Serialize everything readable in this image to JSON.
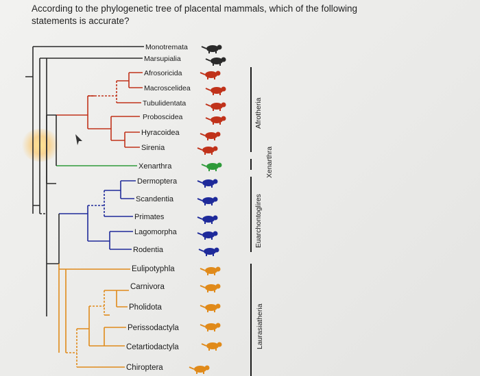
{
  "question": {
    "line1": "According to the phylogenetic tree of placental mammals, which of the following",
    "line2": "statements is accurate?"
  },
  "colors": {
    "afrotheria": "#c0321a",
    "xenarthra": "#2e9a3a",
    "euarchontoglires": "#1e2a9a",
    "laurasiatheria": "#e08a1a",
    "outgroup": "#2a2a2a"
  },
  "taxa": [
    {
      "label": "Monotremata",
      "clade": "outgroup",
      "icon": "platypus-icon"
    },
    {
      "label": "Marsupialia",
      "clade": "outgroup",
      "icon": "kangaroo-icon"
    },
    {
      "label": "Afrosoricida",
      "clade": "afrotheria",
      "icon": "tenrec-icon"
    },
    {
      "label": "Macroscelidea",
      "clade": "afrotheria",
      "icon": "elephant-shrew-icon"
    },
    {
      "label": "Tubulidentata",
      "clade": "afrotheria",
      "icon": "aardvark-icon"
    },
    {
      "label": "Proboscidea",
      "clade": "afrotheria",
      "icon": "elephant-icon"
    },
    {
      "label": "Hyracoidea",
      "clade": "afrotheria",
      "icon": "hyrax-icon"
    },
    {
      "label": "Sirenia",
      "clade": "afrotheria",
      "icon": "manatee-icon"
    },
    {
      "label": "Xenarthra",
      "clade": "xenarthra",
      "icon": "armadillo-icon"
    },
    {
      "label": "Dermoptera",
      "clade": "euarchontoglires",
      "icon": "colugo-icon"
    },
    {
      "label": "Scandentia",
      "clade": "euarchontoglires",
      "icon": "tree-shrew-icon"
    },
    {
      "label": "Primates",
      "clade": "euarchontoglires",
      "icon": "primate-icon"
    },
    {
      "label": "Lagomorpha",
      "clade": "euarchontoglires",
      "icon": "rabbit-icon"
    },
    {
      "label": "Rodentia",
      "clade": "euarchontoglires",
      "icon": "rodent-icon"
    },
    {
      "label": "Eulipotyphla",
      "clade": "laurasiatheria",
      "icon": "shrew-icon"
    },
    {
      "label": "Carnivora",
      "clade": "laurasiatheria",
      "icon": "big-cat-icon"
    },
    {
      "label": "Pholidota",
      "clade": "laurasiatheria",
      "icon": "pangolin-icon"
    },
    {
      "label": "Perissodactyla",
      "clade": "laurasiatheria",
      "icon": "horse-icon"
    },
    {
      "label": "Cetartiodactyla",
      "clade": "laurasiatheria",
      "icon": "camel-whale-icon"
    },
    {
      "label": "Chiroptera",
      "clade": "laurasiatheria",
      "icon": "bat-icon"
    }
  ],
  "groups": {
    "afrotheria": "Afrotheria",
    "xenarthra": "Xenarthra",
    "euarchontoglires": "Euarchontoglires",
    "laurasiatheria": "Laurasiatheria"
  }
}
